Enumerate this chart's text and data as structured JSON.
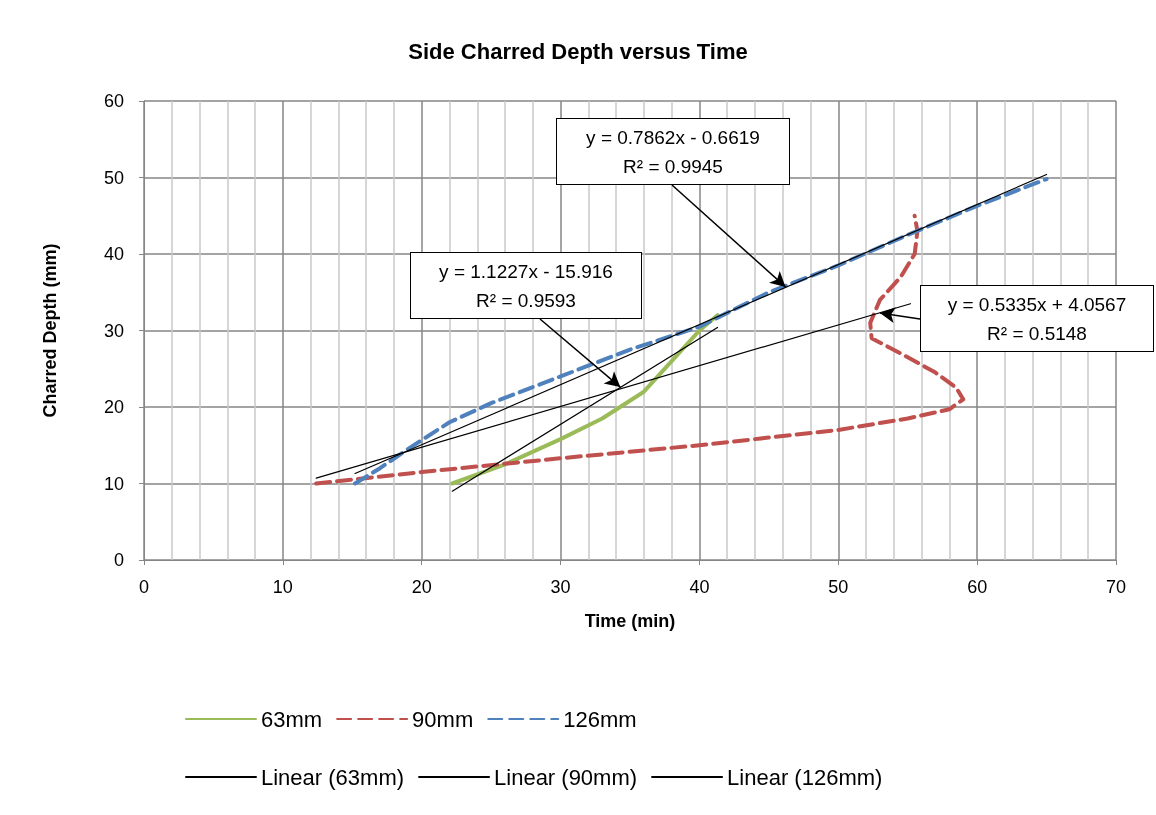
{
  "chart_data": {
    "type": "line",
    "title": "Side Charred Depth versus Time",
    "xlabel": "Time (min)",
    "ylabel": "Charred Depth (mm)",
    "xlim": [
      0,
      70
    ],
    "xticks": [
      0,
      10,
      20,
      30,
      40,
      50,
      60,
      70
    ],
    "ylim": [
      0,
      60
    ],
    "yticks": [
      0,
      10,
      20,
      30,
      40,
      50,
      60
    ],
    "grid": true,
    "legend": "bottom",
    "marker": "none",
    "series": [
      {
        "name": "63mm",
        "color": "#9bbb59",
        "line_style": "solid",
        "x": [
          22.2,
          26,
          30,
          33,
          36,
          38,
          40,
          41.3
        ],
        "values": [
          10,
          12.5,
          15.8,
          18.5,
          22,
          26,
          30,
          32
        ]
      },
      {
        "name": "90mm",
        "color": "#c0504d",
        "line_style": "dashed",
        "x": [
          12.4,
          20,
          30,
          40,
          50,
          55,
          58,
          59,
          58.5,
          57,
          54.5,
          52.4,
          52.3,
          53,
          54.5,
          55.5,
          55.7,
          55.5
        ],
        "values": [
          10,
          11.5,
          13.3,
          15,
          17,
          18.5,
          19.7,
          21,
          22.5,
          24.5,
          27,
          29,
          31,
          34,
          37,
          40,
          43,
          45
        ]
      },
      {
        "name": "126mm",
        "color": "#4f81bd",
        "line_style": "dashed",
        "x": [
          15.2,
          17,
          19,
          22,
          25,
          30,
          35,
          40,
          45,
          50,
          55,
          60,
          65
        ],
        "values": [
          10,
          12,
          14.5,
          18,
          20.5,
          24,
          27.5,
          30.5,
          35,
          38.5,
          42.5,
          46.3,
          49.8
        ]
      },
      {
        "name": "Linear (63mm)",
        "color": "#000000",
        "line_style": "solid",
        "x": [
          22.2,
          41.3
        ],
        "values": [
          9.0,
          30.4
        ]
      },
      {
        "name": "Linear (90mm)",
        "color": "#000000",
        "line_style": "solid",
        "x": [
          12.4,
          55.2
        ],
        "values": [
          10.7,
          33.5
        ]
      },
      {
        "name": "Linear (126mm)",
        "color": "#000000",
        "line_style": "solid",
        "x": [
          15.2,
          65
        ],
        "values": [
          11.3,
          50.4
        ]
      }
    ],
    "annotations": [
      {
        "text": "y = 0.7862x - 0.6619\nR² = 0.9945",
        "x": 46.2,
        "y": 35.7
      },
      {
        "text": "y = 1.1227x - 15.916\nR² = 0.9593",
        "x": 34.3,
        "y": 22.6
      },
      {
        "text": "y = 0.5335x + 4.0567\nR² = 0.5148",
        "x": 53,
        "y": 32.3
      }
    ]
  }
}
